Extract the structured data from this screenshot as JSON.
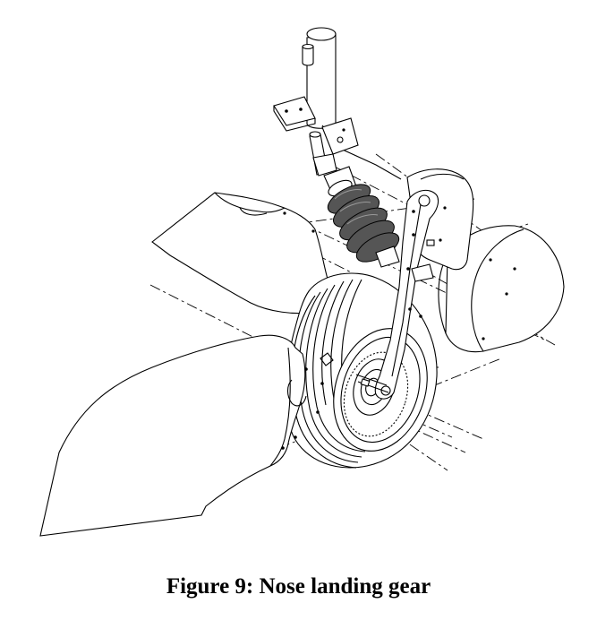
{
  "figure": {
    "caption": "Figure 9: Nose landing gear"
  }
}
